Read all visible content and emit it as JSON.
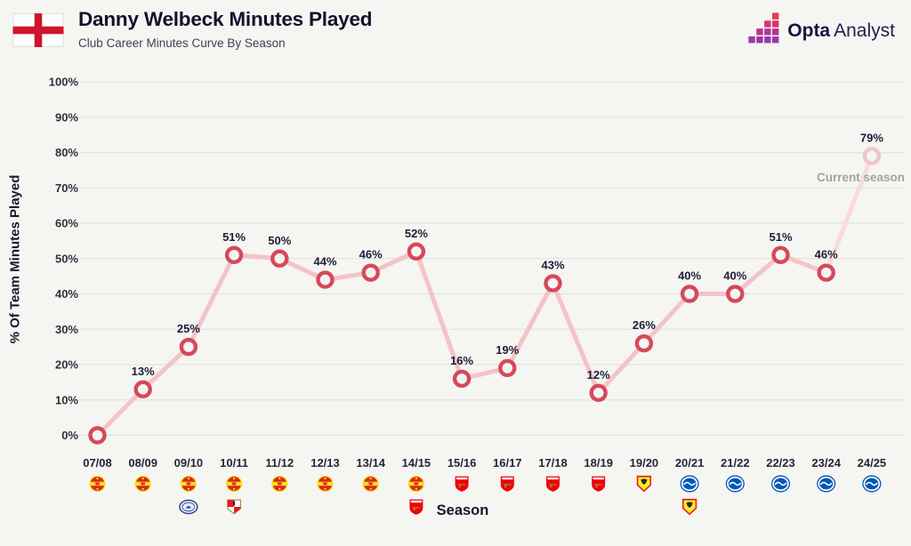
{
  "page": {
    "background": "#f5f5f2"
  },
  "header": {
    "title": "Danny Welbeck Minutes Played",
    "subtitle": "Club Career Minutes Curve By Season",
    "flag_icon": "england-flag",
    "brand": {
      "icon": "opta-mark",
      "name_bold": "Opta",
      "name_light": "Analyst"
    }
  },
  "chart_data": {
    "type": "line",
    "title": "Danny Welbeck Minutes Played",
    "subtitle": "Club Career Minutes Curve By Season",
    "xlabel": "Season",
    "ylabel": "% Of Team Minutes Played",
    "ylim": [
      0,
      100
    ],
    "ytick_step": 10,
    "grid": true,
    "legend": "none",
    "annotation": "Current season",
    "yticks": [
      "0%",
      "10%",
      "20%",
      "30%",
      "40%",
      "50%",
      "60%",
      "70%",
      "80%",
      "90%",
      "100%"
    ],
    "categories": [
      "07/08",
      "08/09",
      "09/10",
      "10/11",
      "11/12",
      "12/13",
      "13/14",
      "14/15",
      "15/16",
      "16/17",
      "17/18",
      "18/19",
      "19/20",
      "20/21",
      "21/22",
      "22/23",
      "23/24",
      "24/25"
    ],
    "values": [
      0,
      13,
      25,
      51,
      50,
      44,
      46,
      52,
      16,
      19,
      43,
      12,
      26,
      40,
      40,
      51,
      46,
      79
    ],
    "point_labels": [
      "",
      "13%",
      "25%",
      "51%",
      "50%",
      "44%",
      "46%",
      "52%",
      "16%",
      "19%",
      "43%",
      "12%",
      "26%",
      "40%",
      "40%",
      "51%",
      "46%",
      "79%"
    ],
    "clubs": [
      [
        "man-utd"
      ],
      [
        "man-utd"
      ],
      [
        "man-utd",
        "preston"
      ],
      [
        "man-utd",
        "sunderland"
      ],
      [
        "man-utd"
      ],
      [
        "man-utd"
      ],
      [
        "man-utd"
      ],
      [
        "man-utd",
        "arsenal"
      ],
      [
        "arsenal"
      ],
      [
        "arsenal"
      ],
      [
        "arsenal"
      ],
      [
        "arsenal"
      ],
      [
        "watford"
      ],
      [
        "brighton",
        "watford"
      ],
      [
        "brighton"
      ],
      [
        "brighton"
      ],
      [
        "brighton"
      ],
      [
        "brighton"
      ]
    ],
    "current_season_index": 17,
    "colors": {
      "line": "#f3c3c8",
      "line_faded": "#f8dbde",
      "point": "#d5495a",
      "point_faded": "#efc5cc",
      "grid": "#e4e4e0",
      "label": "#1d1d3a",
      "tick": "#30303f",
      "annotation": "#a2a2a2",
      "background": "#f5f5f2"
    }
  }
}
